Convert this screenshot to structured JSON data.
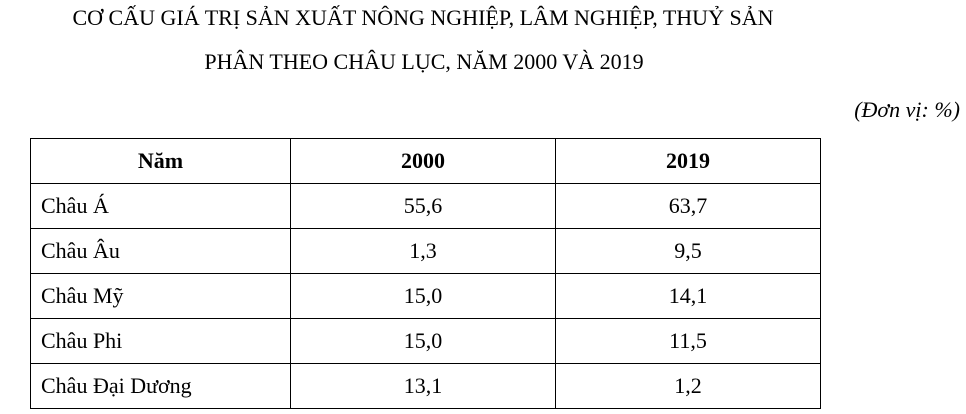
{
  "header": {
    "title_line1": "CƠ CẤU GIÁ TRỊ SẢN XUẤT NÔNG NGHIỆP, LÂM NGHIỆP, THUỶ SẢN",
    "title_line2": "PHÂN THEO CHÂU LỤC, NĂM 2000 VÀ 2019",
    "unit": "(Đơn vị: %)"
  },
  "table": {
    "columns": [
      "Năm",
      "2000",
      "2019"
    ],
    "rows": [
      [
        "Châu Á",
        "55,6",
        "63,7"
      ],
      [
        "Châu Âu",
        "1,3",
        "9,5"
      ],
      [
        "Châu Mỹ",
        "15,0",
        "14,1"
      ],
      [
        "Châu Phi",
        "15,0",
        "11,5"
      ],
      [
        "Châu Đại Dương",
        "13,1",
        "1,2"
      ]
    ]
  }
}
